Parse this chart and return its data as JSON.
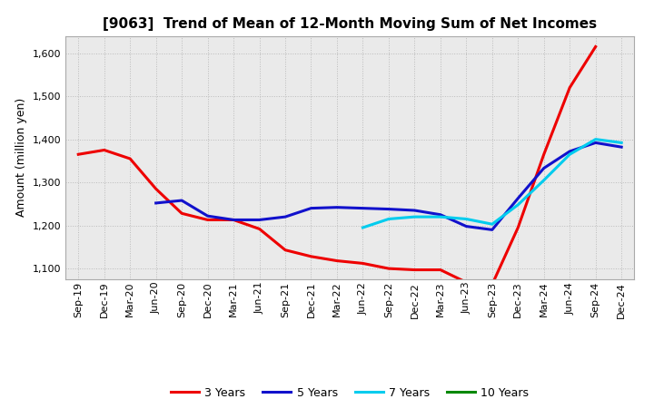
{
  "title": "[9063]  Trend of Mean of 12-Month Moving Sum of Net Incomes",
  "ylabel": "Amount (million yen)",
  "x_labels": [
    "Sep-19",
    "Dec-19",
    "Mar-20",
    "Jun-20",
    "Sep-20",
    "Dec-20",
    "Mar-21",
    "Jun-21",
    "Sep-21",
    "Dec-21",
    "Mar-22",
    "Jun-22",
    "Sep-22",
    "Dec-22",
    "Mar-23",
    "Jun-23",
    "Sep-23",
    "Dec-23",
    "Mar-24",
    "Jun-24",
    "Sep-24",
    "Dec-24"
  ],
  "ylim": [
    1075,
    1640
  ],
  "yticks": [
    1100,
    1200,
    1300,
    1400,
    1500,
    1600
  ],
  "series": [
    {
      "name": "3 Years",
      "color": "#EE0000",
      "values": [
        1365,
        1375,
        1355,
        1285,
        1228,
        1213,
        1213,
        1192,
        1143,
        1128,
        1118,
        1112,
        1100,
        1097,
        1097,
        1068,
        1063,
        1195,
        1365,
        1520,
        1615,
        null
      ]
    },
    {
      "name": "5 Years",
      "color": "#1111CC",
      "values": [
        null,
        null,
        null,
        1252,
        1258,
        1222,
        1213,
        1213,
        1220,
        1240,
        1242,
        1240,
        1238,
        1235,
        1225,
        1198,
        1190,
        1263,
        1333,
        1372,
        1392,
        1382
      ]
    },
    {
      "name": "7 Years",
      "color": "#00CCEE",
      "values": [
        null,
        null,
        null,
        null,
        null,
        null,
        null,
        null,
        null,
        null,
        null,
        1195,
        1215,
        1220,
        1220,
        1215,
        1203,
        1248,
        1305,
        1365,
        1400,
        1392
      ]
    },
    {
      "name": "10 Years",
      "color": "#008800",
      "values": [
        null,
        null,
        null,
        null,
        null,
        null,
        null,
        null,
        null,
        null,
        null,
        null,
        null,
        null,
        null,
        null,
        null,
        null,
        null,
        null,
        null,
        null
      ]
    }
  ],
  "background_color": "#FFFFFF",
  "plot_bg_color": "#EAEAEA",
  "grid_color": "#BBBBBB",
  "title_fontsize": 11,
  "ylabel_fontsize": 9,
  "tick_fontsize": 8,
  "legend_fontsize": 9,
  "linewidth": 2.2
}
